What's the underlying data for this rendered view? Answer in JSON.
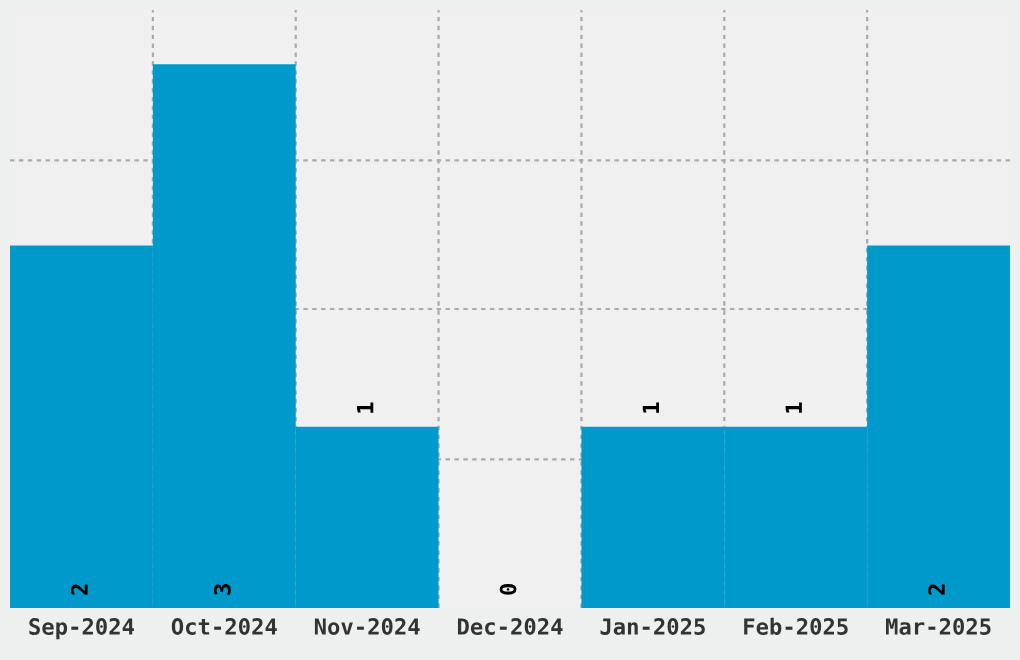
{
  "chart_data": {
    "type": "bar",
    "categories": [
      "Sep-2024",
      "Oct-2024",
      "Nov-2024",
      "Dec-2024",
      "Jan-2025",
      "Feb-2025",
      "Mar-2025"
    ],
    "values": [
      2,
      3,
      1,
      0,
      1,
      1,
      2
    ],
    "color": "#0099cc",
    "ylim": [
      0,
      3.3
    ],
    "yticks": [
      {
        "value": 0.82,
        "label": null
      },
      {
        "value": 1.65,
        "label": null
      },
      {
        "value": 2.47,
        "label": null
      }
    ],
    "tick_labels": "x",
    "data_labels": true,
    "grid": true
  }
}
